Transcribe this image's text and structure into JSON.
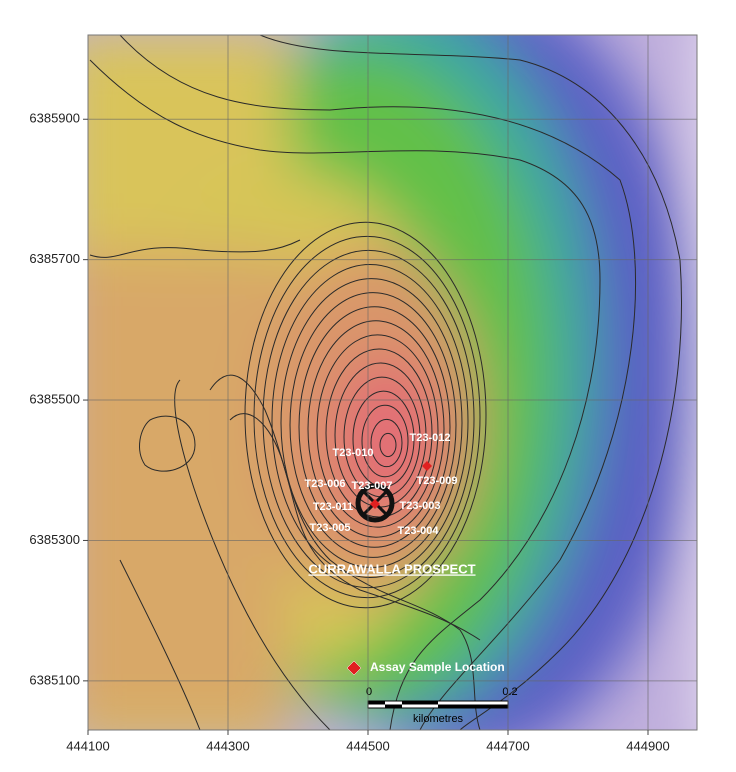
{
  "map": {
    "xlim": [
      444100,
      444970
    ],
    "ylim": [
      6385030,
      6386020
    ],
    "xticks": [
      444100,
      444300,
      444500,
      444700,
      444900
    ],
    "yticks": [
      6385100,
      6385300,
      6385500,
      6385700,
      6385900
    ],
    "grid": true,
    "prospect": "CURRAWALLA PROSPECT",
    "legend": "Assay Sample Location",
    "scale_bar": {
      "start": "0",
      "end": "0.2",
      "unit": "kilometres"
    },
    "holes": [
      "T23-012",
      "T23-010",
      "T23-009",
      "T23-006",
      "T23-007",
      "T23-011",
      "T23-003",
      "T23-005",
      "T23-004"
    ]
  }
}
